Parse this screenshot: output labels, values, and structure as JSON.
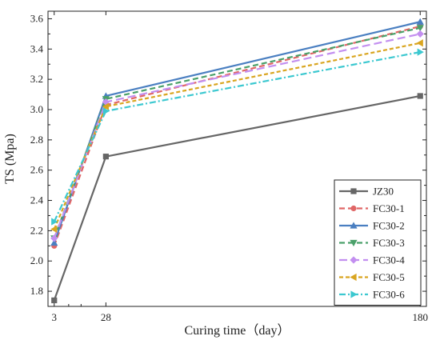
{
  "chart_data": {
    "type": "line",
    "title": "",
    "xlabel": "Curing time（day）",
    "ylabel": "TS (Mpa)",
    "x": [
      3,
      28,
      180
    ],
    "x_ticks": [
      "3",
      "28",
      "180"
    ],
    "xlim": [
      0,
      183
    ],
    "ylim": [
      1.7,
      3.65
    ],
    "y_ticks": [
      "1.8",
      "2.0",
      "2.2",
      "2.4",
      "2.6",
      "2.8",
      "3.0",
      "3.2",
      "3.4",
      "3.6"
    ],
    "grid": false,
    "legend_position": "bottom-right",
    "series": [
      {
        "name": "JZ30",
        "values": [
          1.74,
          2.69,
          3.09
        ],
        "color": "#666666",
        "marker": "square",
        "dash": "solid"
      },
      {
        "name": "FC30-1",
        "values": [
          2.1,
          3.03,
          3.55
        ],
        "color": "#e06666",
        "marker": "circle",
        "dash": "dash"
      },
      {
        "name": "FC30-2",
        "values": [
          2.12,
          3.09,
          3.58
        ],
        "color": "#4a7fc1",
        "marker": "triangle-up",
        "dash": "solid"
      },
      {
        "name": "FC30-3",
        "values": [
          2.15,
          3.07,
          3.54
        ],
        "color": "#4aa06a",
        "marker": "triangle-down",
        "dash": "dash"
      },
      {
        "name": "FC30-4",
        "values": [
          2.15,
          3.05,
          3.5
        ],
        "color": "#c38ff0",
        "marker": "diamond",
        "dash": "longdash"
      },
      {
        "name": "FC30-5",
        "values": [
          2.21,
          3.02,
          3.44
        ],
        "color": "#d9a520",
        "marker": "triangle-left",
        "dash": "shortdash"
      },
      {
        "name": "FC30-6",
        "values": [
          2.26,
          2.99,
          3.38
        ],
        "color": "#3cc8d0",
        "marker": "triangle-right",
        "dash": "dashdot"
      }
    ]
  }
}
